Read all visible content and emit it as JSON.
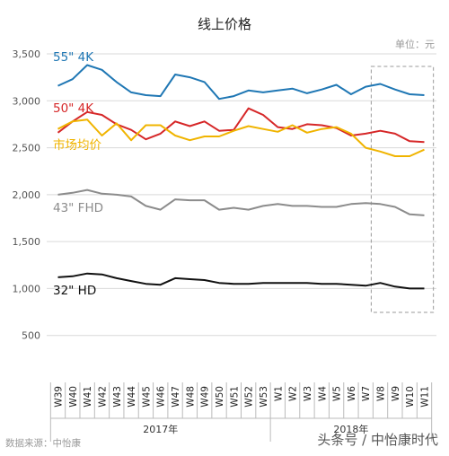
{
  "chart_data": {
    "type": "line",
    "title": "线上价格",
    "unit_label": "单位：元",
    "source": "数据来源：中怡康",
    "watermark": "头条号 / 中怡康时代",
    "ylim": [
      0,
      3500
    ],
    "yticks": [
      500,
      1000,
      1500,
      2000,
      2500,
      3000,
      3500
    ],
    "ytick_labels": [
      "500",
      "1,000",
      "1,500",
      "2,000",
      "2,500",
      "3,000",
      "3,500"
    ],
    "categories": [
      "W39",
      "W40",
      "W41",
      "W42",
      "W43",
      "W44",
      "W45",
      "W46",
      "W47",
      "W48",
      "W49",
      "W50",
      "W51",
      "W52",
      "W53",
      "W1",
      "W2",
      "W3",
      "W4",
      "W5",
      "W6",
      "W7",
      "W8",
      "W9",
      "W10",
      "W11"
    ],
    "year_groups": [
      {
        "label": "2017年",
        "start": 0,
        "end": 14
      },
      {
        "label": "2018年",
        "start": 15,
        "end": 25
      }
    ],
    "highlight_range": [
      22,
      25
    ],
    "grid": true,
    "series": [
      {
        "name": "55\" 4K",
        "color": "#1f77b4",
        "values": [
          3160,
          3230,
          3380,
          3330,
          3200,
          3090,
          3060,
          3050,
          3280,
          3250,
          3200,
          3020,
          3050,
          3110,
          3090,
          3110,
          3130,
          3080,
          3120,
          3170,
          3070,
          3150,
          3180,
          3120,
          3070,
          3060
        ]
      },
      {
        "name": "50\" 4K",
        "color": "#d62728",
        "values": [
          2660,
          2780,
          2880,
          2850,
          2750,
          2690,
          2590,
          2650,
          2780,
          2730,
          2780,
          2680,
          2690,
          2920,
          2850,
          2720,
          2700,
          2750,
          2740,
          2710,
          2630,
          2650,
          2680,
          2650,
          2570,
          2560
        ]
      },
      {
        "name": "市场均价",
        "color": "#f0b400",
        "values": [
          2700,
          2780,
          2800,
          2630,
          2760,
          2580,
          2740,
          2740,
          2630,
          2580,
          2620,
          2620,
          2680,
          2730,
          2700,
          2670,
          2740,
          2660,
          2700,
          2720,
          2650,
          2500,
          2460,
          2410,
          2410,
          2480
        ]
      },
      {
        "name": "43\" FHD",
        "color": "#8c8c8c",
        "values": [
          2000,
          2020,
          2050,
          2010,
          2000,
          1980,
          1880,
          1840,
          1950,
          1940,
          1940,
          1840,
          1860,
          1840,
          1880,
          1900,
          1880,
          1880,
          1870,
          1870,
          1900,
          1910,
          1900,
          1870,
          1790,
          1780
        ]
      },
      {
        "name": "32\" HD",
        "color": "#111111",
        "values": [
          1120,
          1130,
          1160,
          1150,
          1110,
          1080,
          1050,
          1040,
          1110,
          1100,
          1090,
          1060,
          1050,
          1050,
          1060,
          1060,
          1060,
          1060,
          1050,
          1050,
          1040,
          1030,
          1060,
          1020,
          1000,
          1000
        ]
      }
    ]
  }
}
